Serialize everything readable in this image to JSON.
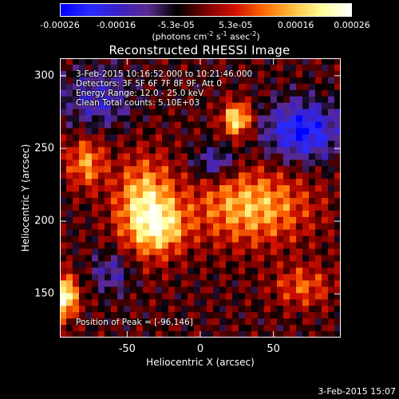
{
  "colorbar": {
    "ticks": [
      "-0.00026",
      "-0.00016",
      "-5.3e-05",
      "5.3e-05",
      "0.00016",
      "0.00026"
    ],
    "tick_values": [
      -0.00026,
      -0.00016,
      -5.3e-05,
      5.3e-05,
      0.00016,
      0.00026
    ],
    "range": [
      -0.00026,
      0.00026
    ],
    "units_main": "(photons cm",
    "units_exp1": "-2",
    "units_mid": " s",
    "units_exp2": "-1",
    "units_end": " asec",
    "units_exp3": "-2",
    "units_close": ")"
  },
  "title": "Reconstructed RHESSI Image",
  "annotations": {
    "time": "3-Feb-2015 10:16:52.000 to 10:21:46.000",
    "detectors": "Detectors: 3F 5F 6F 7F 8F 9F, Att 0",
    "energy": "Energy Range: 12.0 - 25.0 keV",
    "clean": "Clean    Total counts: 5.10E+03",
    "peak": "Position of Peak = [-96,146]"
  },
  "chart_data": {
    "type": "heatmap",
    "title": "Reconstructed RHESSI Image",
    "xlabel": "Heliocentric X (arcsec)",
    "ylabel": "Heliocentric Y (arcsec)",
    "xlim": [
      -96,
      96
    ],
    "ylim": [
      120,
      312
    ],
    "xticks": [
      -50,
      0,
      50
    ],
    "yticks": [
      150,
      200,
      250,
      300
    ],
    "colormap": [
      "#0000ff",
      "#2a2aff",
      "#3a20c8",
      "#5a2a90",
      "#000000",
      "#7a0000",
      "#d01000",
      "#ff6a00",
      "#ffbe40",
      "#ffff9a",
      "#ffffff"
    ],
    "peak": [
      -96,
      146
    ],
    "total_counts": "5.10E+03"
  },
  "footer": {
    "date": "3-Feb-2015 15:07"
  }
}
